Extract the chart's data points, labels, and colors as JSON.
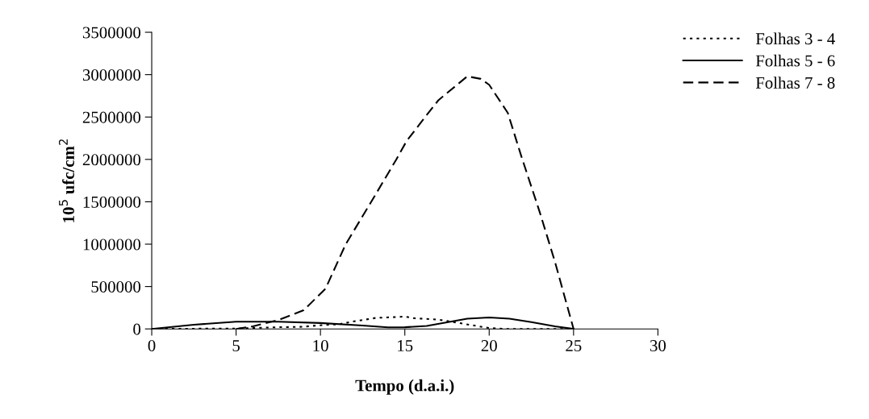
{
  "chart_data": {
    "type": "line",
    "xlabel": "Tempo (d.a.i.)",
    "ylabel": "10$^{5}$ ufc/cm$^{2}$",
    "xlim": [
      0,
      30
    ],
    "xticks": [
      0,
      5,
      10,
      15,
      20,
      25,
      30
    ],
    "ylim": [
      0,
      3500000
    ],
    "yticks": [
      0,
      500000,
      1000000,
      1500000,
      2000000,
      2500000,
      3000000,
      3500000
    ],
    "grid": false,
    "legend": "top right",
    "marker": "none",
    "series": [
      {
        "name": "Folhas 3 - 4",
        "color": "#000000",
        "line_style": "dotted",
        "x": [
          0,
          5,
          7.5,
          8.9,
          10.1,
          11.1,
          12,
          13.3,
          15,
          15.6,
          17,
          18.5,
          20,
          21,
          25
        ],
        "values": [
          0,
          5000,
          20000,
          25000,
          45000,
          55000,
          90000,
          130000,
          145000,
          125000,
          110000,
          60000,
          10000,
          0,
          0
        ]
      },
      {
        "name": "Folhas 5 - 6",
        "color": "#000000",
        "line_style": "solid",
        "x": [
          0,
          2.5,
          5,
          7.5,
          10,
          12.5,
          14,
          15,
          16.3,
          18.7,
          20,
          21.2,
          22.5,
          23.9,
          25
        ],
        "values": [
          0,
          50000,
          85000,
          85000,
          70000,
          40000,
          18000,
          20000,
          35000,
          120000,
          135000,
          120000,
          80000,
          30000,
          0
        ]
      },
      {
        "name": "Folhas 7 - 8",
        "color": "#000000",
        "line_style": "dashed",
        "x": [
          5,
          6,
          7.5,
          9,
          10.3,
          11.5,
          13.1,
          14.5,
          15.1,
          16.3,
          17,
          18.7,
          19.5,
          20,
          21.1,
          21.9,
          23,
          23.9,
          25
        ],
        "values": [
          0,
          30000,
          105000,
          220000,
          475000,
          1000000,
          1530000,
          2000000,
          2215000,
          2525000,
          2700000,
          2980000,
          2950000,
          2880000,
          2550000,
          2040000,
          1375000,
          790000,
          0
        ]
      }
    ]
  }
}
